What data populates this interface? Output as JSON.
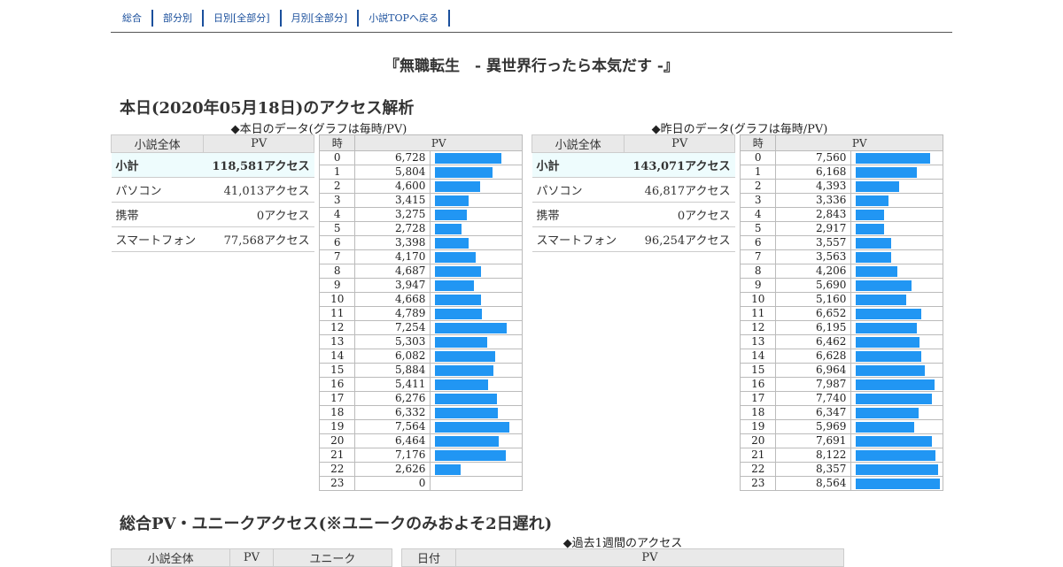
{
  "nav": {
    "items": [
      "総合",
      "部分別",
      "日別[全部分]",
      "月別[全部分]",
      "小説TOPへ戻る"
    ]
  },
  "title": "『無職転生　- 異世界行ったら本気だす -』",
  "today_section": {
    "heading": "本日(2020年05月18日)のアクセス解析",
    "today_caption": "◆本日のデータ(グラフは毎時/PV)",
    "yesterday_caption": "◆昨日のデータ(グラフは毎時/PV)"
  },
  "summary_header": {
    "col1": "小説全体",
    "col2": "PV"
  },
  "hourly_header": {
    "col1": "時",
    "col2": "PV"
  },
  "today_summary": [
    {
      "label": "小計",
      "value": "118,581アクセス"
    },
    {
      "label": "パソコン",
      "value": "41,013アクセス"
    },
    {
      "label": "携帯",
      "value": "0アクセス"
    },
    {
      "label": "スマートフォン",
      "value": "77,568アクセス"
    }
  ],
  "yesterday_summary": [
    {
      "label": "小計",
      "value": "143,071アクセス"
    },
    {
      "label": "パソコン",
      "value": "46,817アクセス"
    },
    {
      "label": "携帯",
      "value": "0アクセス"
    },
    {
      "label": "スマートフォン",
      "value": "96,254アクセス"
    }
  ],
  "today_hourly": {
    "hours": [
      "0",
      "1",
      "2",
      "3",
      "4",
      "5",
      "6",
      "7",
      "8",
      "9",
      "10",
      "11",
      "12",
      "13",
      "14",
      "15",
      "16",
      "17",
      "18",
      "19",
      "20",
      "21",
      "22",
      "23"
    ],
    "pv": [
      "6,728",
      "5,804",
      "4,600",
      "3,415",
      "3,275",
      "2,728",
      "3,398",
      "4,170",
      "4,687",
      "3,947",
      "4,668",
      "4,789",
      "7,254",
      "5,303",
      "6,082",
      "5,884",
      "5,411",
      "6,276",
      "6,332",
      "7,564",
      "6,464",
      "7,176",
      "2,626",
      "0"
    ],
    "values": [
      6728,
      5804,
      4600,
      3415,
      3275,
      2728,
      3398,
      4170,
      4687,
      3947,
      4668,
      4789,
      7254,
      5303,
      6082,
      5884,
      5411,
      6276,
      6332,
      7564,
      6464,
      7176,
      2626,
      0
    ]
  },
  "yesterday_hourly": {
    "hours": [
      "0",
      "1",
      "2",
      "3",
      "4",
      "5",
      "6",
      "7",
      "8",
      "9",
      "10",
      "11",
      "12",
      "13",
      "14",
      "15",
      "16",
      "17",
      "18",
      "19",
      "20",
      "21",
      "22",
      "23"
    ],
    "pv": [
      "7,560",
      "6,168",
      "4,393",
      "3,336",
      "2,843",
      "2,917",
      "3,557",
      "3,563",
      "4,206",
      "5,690",
      "5,160",
      "6,652",
      "6,195",
      "6,462",
      "6,628",
      "6,964",
      "7,987",
      "7,740",
      "6,347",
      "5,969",
      "7,691",
      "8,122",
      "8,357",
      "8,564"
    ],
    "values": [
      7560,
      6168,
      4393,
      3336,
      2843,
      2917,
      3557,
      3563,
      4206,
      5690,
      5160,
      6652,
      6195,
      6462,
      6628,
      6964,
      7987,
      7740,
      6347,
      5969,
      7691,
      8122,
      8357,
      8564
    ]
  },
  "total_section": {
    "heading": "総合PV・ユニークアクセス(※ユニークのみおよそ2日遅れ)",
    "week_caption": "◆過去1週間のアクセス",
    "summary_header": {
      "col1": "小説全体",
      "col2": "PV",
      "col3": "ユニーク"
    },
    "week_header": {
      "col1": "日付",
      "col2": "PV"
    }
  },
  "colors": {
    "bar": "#2196f3",
    "link": "#1a4f9c",
    "subtotal_bg": "#eefcfd",
    "header_bg": "#e9e9e9"
  }
}
